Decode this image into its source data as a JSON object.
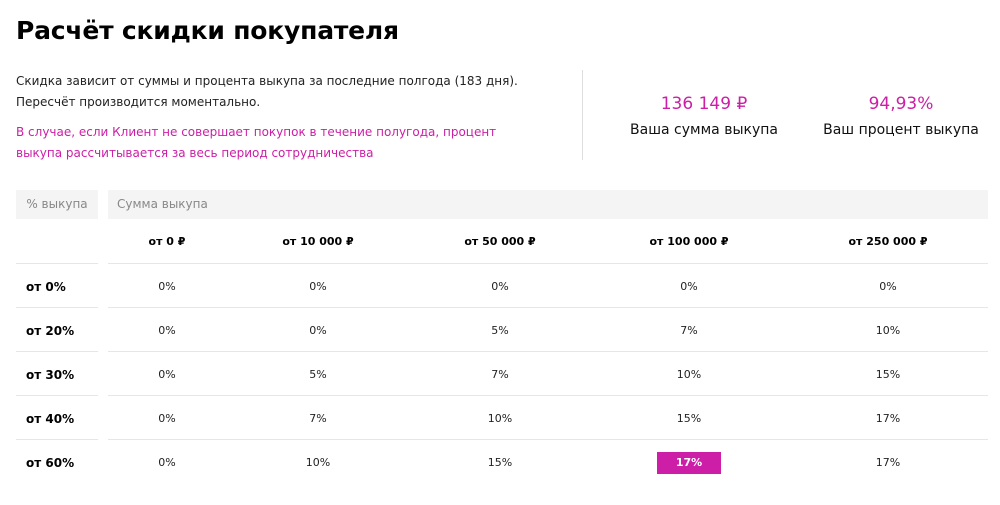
{
  "title": "Расчёт скидки покупателя",
  "description": {
    "line1": "Скидка зависит от суммы и процента выкупа за последние полгода (183 дня).",
    "line2": "Пересчёт производится моментально.",
    "note_line1": "В случае, если Клиент не совершает покупок в течение полугода, процент",
    "note_line2": "выкупа рассчитывается за весь период сотрудничества"
  },
  "metrics": {
    "sum_value": "136 149 ₽",
    "sum_label": "Ваша сумма выкупа",
    "pct_value": "94,93%",
    "pct_label": "Ваш процент выкупа"
  },
  "table": {
    "pct_header": "% выкупа",
    "sum_header": "Сумма выкупа",
    "columns": [
      "от 0 ₽",
      "от 10 000 ₽",
      "от 50 000 ₽",
      "от 100 000 ₽",
      "от 250 000 ₽"
    ],
    "rows": [
      {
        "label": "от 0%",
        "cells": [
          "0%",
          "0%",
          "0%",
          "0%",
          "0%"
        ]
      },
      {
        "label": "от 20%",
        "cells": [
          "0%",
          "0%",
          "5%",
          "7%",
          "10%"
        ]
      },
      {
        "label": "от 30%",
        "cells": [
          "0%",
          "5%",
          "7%",
          "10%",
          "15%"
        ]
      },
      {
        "label": "от 40%",
        "cells": [
          "0%",
          "7%",
          "10%",
          "15%",
          "17%"
        ]
      },
      {
        "label": "от 60%",
        "cells": [
          "0%",
          "10%",
          "15%",
          "17%",
          "17%"
        ]
      }
    ],
    "highlight": {
      "row": 4,
      "col": 3
    }
  },
  "colors": {
    "accent": "#cc1ea6",
    "header_bg": "#f4f4f4"
  }
}
